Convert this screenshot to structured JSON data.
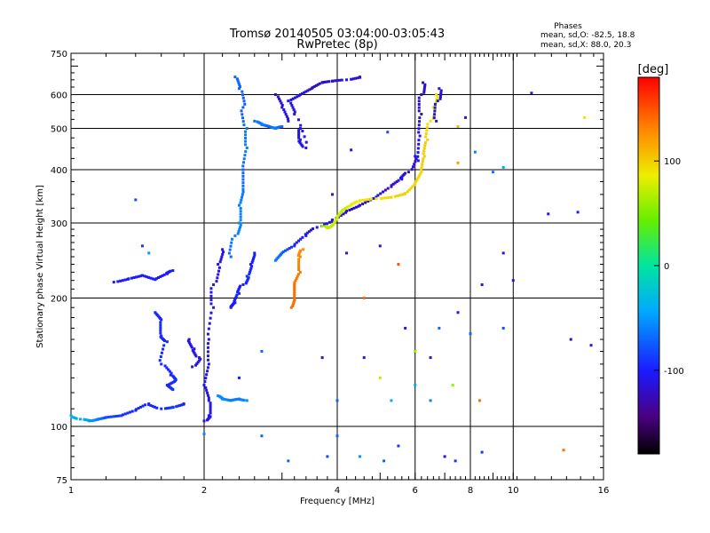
{
  "chart_data": {
    "type": "scatter",
    "title": "Tromsø 20140505 03:04:00-03:05:43",
    "subtitle": "RwPretec (8p)",
    "xlabel": "Frequency [MHz]",
    "ylabel": "Stationary phase Virtual Height [km]",
    "x_scale": "log",
    "y_scale": "log",
    "xlim": [
      1,
      16
    ],
    "ylim": [
      75,
      750
    ],
    "x_ticks": [
      1,
      2,
      4,
      6,
      8,
      10,
      16
    ],
    "y_ticks": [
      75,
      100,
      200,
      300,
      400,
      500,
      600,
      750
    ],
    "grid": true,
    "stats": {
      "title": "Phases",
      "line_o": "mean, sd,O: -82.5, 18.8",
      "line_x": "mean, sd,X: 88.0, 20.3"
    },
    "colorbar": {
      "label": "[deg]",
      "range": [
        -180,
        180
      ],
      "ticks": [
        100,
        0,
        -100
      ],
      "tick_labels": [
        "100",
        "0",
        "-100"
      ]
    },
    "color_by": "phase_deg",
    "series": [
      {
        "values": [
          [
            1.0,
            106,
            -40
          ],
          [
            1.05,
            104,
            -40
          ],
          [
            1.1,
            103,
            -50
          ],
          [
            1.15,
            104,
            -60
          ],
          [
            1.2,
            105,
            -80
          ],
          [
            1.3,
            106,
            -90
          ],
          [
            1.4,
            109,
            -95
          ],
          [
            1.5,
            113,
            -95
          ],
          [
            1.6,
            110,
            -95
          ],
          [
            1.7,
            111,
            -85
          ],
          [
            1.8,
            113,
            -100
          ]
        ]
      },
      {
        "values": [
          [
            1.25,
            218,
            -100
          ],
          [
            1.35,
            222,
            -100
          ],
          [
            1.45,
            226,
            -100
          ],
          [
            1.55,
            221,
            -100
          ],
          [
            1.65,
            228,
            -100
          ],
          [
            1.7,
            232,
            -100
          ]
        ]
      },
      {
        "values": [
          [
            1.55,
            185,
            -95
          ],
          [
            1.6,
            178,
            -95
          ],
          [
            1.6,
            163,
            -95
          ],
          [
            1.65,
            158,
            -95
          ],
          [
            1.6,
            140,
            -95
          ],
          [
            1.68,
            132,
            -95
          ],
          [
            1.72,
            128,
            -90
          ],
          [
            1.65,
            125,
            -95
          ],
          [
            1.7,
            122,
            -90
          ]
        ]
      },
      {
        "values": [
          [
            1.85,
            160,
            -110
          ],
          [
            1.9,
            152,
            -110
          ],
          [
            1.95,
            145,
            -110
          ],
          [
            1.88,
            138,
            -110
          ]
        ]
      },
      {
        "values": [
          [
            2.0,
            103,
            -110
          ],
          [
            2.05,
            106,
            -110
          ],
          [
            2.05,
            115,
            -110
          ],
          [
            2.0,
            125,
            -110
          ],
          [
            2.05,
            140,
            -110
          ],
          [
            2.05,
            160,
            -110
          ],
          [
            2.1,
            190,
            -110
          ],
          [
            2.1,
            215,
            -110
          ],
          [
            2.15,
            240,
            -110
          ],
          [
            2.2,
            260,
            -110
          ]
        ]
      },
      {
        "values": [
          [
            2.15,
            118,
            -55
          ],
          [
            2.2,
            116,
            -55
          ],
          [
            2.3,
            115,
            -60
          ],
          [
            2.4,
            116,
            -60
          ],
          [
            2.5,
            115,
            -55
          ]
        ]
      },
      {
        "values": [
          [
            2.3,
            190,
            -100
          ],
          [
            2.35,
            195,
            -100
          ],
          [
            2.4,
            205,
            -95
          ],
          [
            2.45,
            215,
            -100
          ],
          [
            2.5,
            225,
            -90
          ],
          [
            2.55,
            240,
            -100
          ],
          [
            2.6,
            255,
            -100
          ]
        ]
      },
      {
        "values": [
          [
            2.3,
            250,
            -70
          ],
          [
            2.35,
            280,
            -60
          ],
          [
            2.4,
            300,
            -55
          ],
          [
            2.4,
            330,
            -60
          ],
          [
            2.45,
            360,
            -65
          ],
          [
            2.45,
            400,
            -70
          ],
          [
            2.5,
            450,
            -60
          ],
          [
            2.5,
            500,
            -65
          ],
          [
            2.45,
            560,
            -75
          ],
          [
            2.4,
            620,
            -70
          ],
          [
            2.35,
            660,
            -70
          ]
        ]
      },
      {
        "values": [
          [
            2.6,
            520,
            -65
          ],
          [
            2.7,
            510,
            -60
          ],
          [
            2.8,
            505,
            -70
          ],
          [
            2.9,
            500,
            -60
          ],
          [
            3.0,
            505,
            -70
          ]
        ]
      },
      {
        "values": [
          [
            2.9,
            245,
            -60
          ],
          [
            3.0,
            255,
            -70
          ],
          [
            3.2,
            265,
            -95
          ],
          [
            3.4,
            280,
            -105
          ],
          [
            3.6,
            293,
            -110
          ],
          [
            3.9,
            305,
            -110
          ],
          [
            4.2,
            320,
            -115
          ],
          [
            4.5,
            330,
            -120
          ],
          [
            4.9,
            345,
            -115
          ],
          [
            5.3,
            365,
            -120
          ],
          [
            5.6,
            380,
            -110
          ],
          [
            5.8,
            395,
            -115
          ],
          [
            6.0,
            430,
            -115
          ]
        ]
      },
      {
        "values": [
          [
            3.3,
            500,
            -110
          ],
          [
            3.3,
            470,
            -110
          ],
          [
            3.4,
            450,
            -105
          ],
          [
            3.2,
            540,
            -110
          ],
          [
            3.1,
            580,
            -110
          ],
          [
            3.3,
            600,
            -110
          ],
          [
            3.5,
            620,
            -120
          ],
          [
            3.7,
            640,
            -120
          ],
          [
            3.9,
            645,
            -115
          ],
          [
            4.2,
            650,
            -110
          ],
          [
            4.5,
            660,
            -115
          ]
        ]
      },
      {
        "values": [
          [
            3.7,
            295,
            65
          ],
          [
            3.8,
            292,
            70
          ],
          [
            3.9,
            298,
            70
          ],
          [
            4.0,
            310,
            75
          ],
          [
            4.1,
            320,
            70
          ],
          [
            4.3,
            330,
            80
          ],
          [
            4.5,
            338,
            90
          ],
          [
            4.9,
            342,
            90
          ],
          [
            5.3,
            345,
            95
          ],
          [
            5.7,
            352,
            100
          ],
          [
            6.0,
            372,
            95
          ],
          [
            6.2,
            395,
            95
          ],
          [
            6.3,
            430,
            100
          ],
          [
            6.4,
            470,
            100
          ],
          [
            6.5,
            520,
            90
          ],
          [
            6.6,
            560,
            80
          ],
          [
            6.7,
            600,
            90
          ]
        ]
      },
      {
        "values": [
          [
            3.15,
            190,
            140
          ],
          [
            3.2,
            200,
            140
          ],
          [
            3.2,
            215,
            140
          ],
          [
            3.3,
            230,
            135
          ],
          [
            3.3,
            250,
            130
          ],
          [
            3.35,
            260,
            130
          ]
        ]
      },
      {
        "values": [
          [
            6.1,
            420,
            -110
          ],
          [
            6.15,
            480,
            -110
          ],
          [
            6.2,
            540,
            -115
          ],
          [
            6.2,
            600,
            -120
          ],
          [
            6.25,
            640,
            -115
          ]
        ]
      },
      {
        "values": [
          [
            6.7,
            520,
            -110
          ],
          [
            6.75,
            580,
            -115
          ],
          [
            6.8,
            620,
            -115
          ]
        ]
      },
      {
        "values": [
          [
            2.9,
            600,
            -120
          ],
          [
            3.0,
            560,
            -110
          ],
          [
            3.1,
            520,
            -110
          ]
        ]
      }
    ],
    "scatter_points": [
      [
        1.4,
        340,
        -80
      ],
      [
        1.45,
        265,
        -90
      ],
      [
        1.5,
        255,
        -50
      ],
      [
        2.0,
        96,
        -60
      ],
      [
        2.7,
        95,
        -70
      ],
      [
        3.1,
        83,
        -70
      ],
      [
        3.8,
        85,
        -80
      ],
      [
        4.5,
        85,
        -50
      ],
      [
        5.1,
        83,
        -70
      ],
      [
        7.0,
        85,
        -110
      ],
      [
        7.4,
        83,
        -90
      ],
      [
        8.5,
        87,
        -90
      ],
      [
        13.0,
        88,
        140
      ],
      [
        8.4,
        115,
        140
      ],
      [
        4.6,
        200,
        140
      ],
      [
        4.2,
        255,
        -110
      ],
      [
        5.0,
        265,
        -110
      ],
      [
        5.5,
        240,
        150
      ],
      [
        4.3,
        445,
        -110
      ],
      [
        5.2,
        490,
        -80
      ],
      [
        3.9,
        350,
        -110
      ],
      [
        3.7,
        145,
        -110
      ],
      [
        4.6,
        145,
        -100
      ],
      [
        5.7,
        170,
        -100
      ],
      [
        7.5,
        185,
        -110
      ],
      [
        7.3,
        125,
        60
      ],
      [
        6.5,
        145,
        -110
      ],
      [
        6.0,
        150,
        60
      ],
      [
        5.0,
        130,
        70
      ],
      [
        4.0,
        115,
        -70
      ],
      [
        5.3,
        115,
        -40
      ],
      [
        8.5,
        215,
        -110
      ],
      [
        9.5,
        255,
        -110
      ],
      [
        10.0,
        220,
        -110
      ],
      [
        12.0,
        315,
        -110
      ],
      [
        14.0,
        318,
        -100
      ],
      [
        15.0,
        155,
        -100
      ],
      [
        13.5,
        160,
        -120
      ],
      [
        11.0,
        605,
        -110
      ],
      [
        14.5,
        530,
        90
      ],
      [
        8.2,
        440,
        -60
      ],
      [
        7.8,
        530,
        -110
      ],
      [
        7.5,
        505,
        110
      ],
      [
        9.5,
        405,
        -40
      ],
      [
        7.5,
        415,
        120
      ],
      [
        9.0,
        395,
        -60
      ],
      [
        9.5,
        170,
        -80
      ],
      [
        8.0,
        165,
        -70
      ],
      [
        6.8,
        170,
        -70
      ],
      [
        6.5,
        115,
        -60
      ],
      [
        6.0,
        125,
        -40
      ],
      [
        5.5,
        90,
        -90
      ],
      [
        4.0,
        95,
        -70
      ],
      [
        2.7,
        150,
        -70
      ],
      [
        2.4,
        130,
        -100
      ]
    ]
  }
}
